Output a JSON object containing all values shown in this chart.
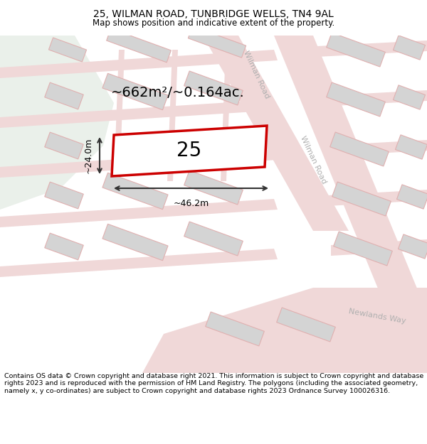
{
  "title": "25, WILMAN ROAD, TUNBRIDGE WELLS, TN4 9AL",
  "subtitle": "Map shows position and indicative extent of the property.",
  "footer": "Contains OS data © Crown copyright and database right 2021. This information is subject to Crown copyright and database rights 2023 and is reproduced with the permission of HM Land Registry. The polygons (including the associated geometry, namely x, y co-ordinates) are subject to Crown copyright and database rights 2023 Ordnance Survey 100026316.",
  "area_label": "~662m²/~0.164ac.",
  "width_label": "~46.2m",
  "height_label": "~24.0m",
  "plot_number": "25",
  "map_bg": "#f7f7f5",
  "road_color": "#f0d8d8",
  "plot_outline_color": "#cc0000",
  "road_label_color": "#b0b0b0",
  "green_area": "#eaf0ea",
  "block_fill": "#d4d4d4",
  "block_stroke": "#e0b0b0",
  "block_lw": 0.8,
  "road_lw": 0.7,
  "title_fontsize": 10,
  "subtitle_fontsize": 8.5,
  "footer_fontsize": 6.8,
  "area_fontsize": 14,
  "plot_num_fontsize": 20,
  "meas_fontsize": 9,
  "road_label_fontsize": 8
}
